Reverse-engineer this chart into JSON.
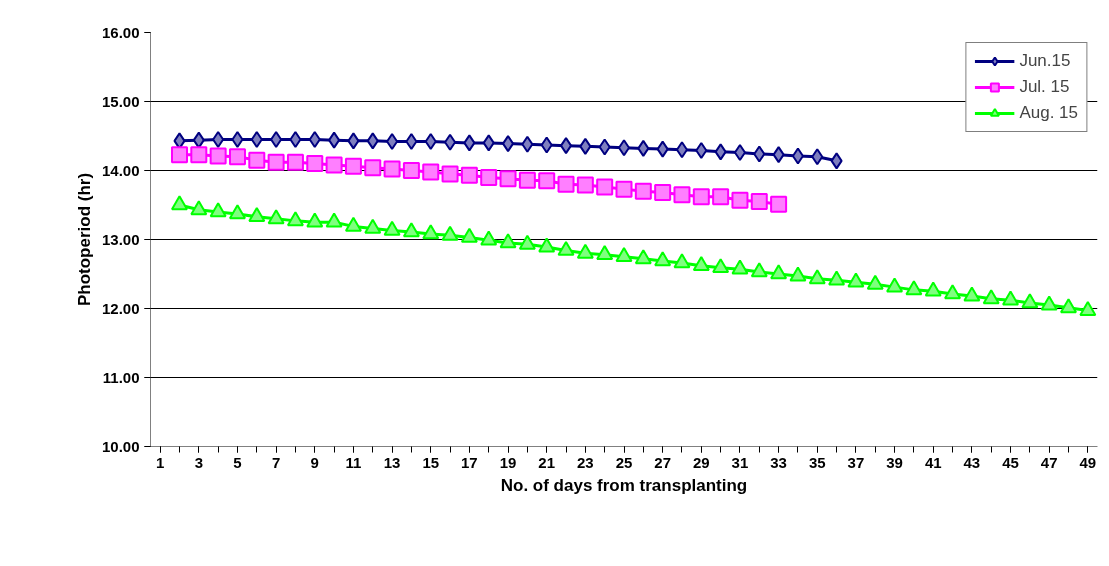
{
  "chart_data": {
    "type": "line",
    "xlabel": "No. of days from transplanting",
    "ylabel": "Photoperiod (hr)",
    "series": [
      {
        "name": "Jun.15",
        "color": "#000080",
        "marker": "diamond",
        "x": [
          2,
          3,
          4,
          5,
          6,
          7,
          8,
          9,
          10,
          11,
          12,
          13,
          14,
          15,
          16,
          17,
          18,
          19,
          20,
          21,
          22,
          23,
          24,
          25,
          26,
          27,
          28,
          29,
          30,
          31,
          32,
          33,
          34,
          35,
          36
        ],
        "values": [
          14.43,
          14.44,
          14.45,
          14.45,
          14.45,
          14.45,
          14.45,
          14.45,
          14.44,
          14.43,
          14.43,
          14.42,
          14.42,
          14.42,
          14.41,
          14.4,
          14.4,
          14.39,
          14.38,
          14.37,
          14.36,
          14.35,
          14.34,
          14.33,
          14.32,
          14.31,
          14.3,
          14.29,
          14.27,
          14.26,
          14.24,
          14.23,
          14.21,
          14.2,
          14.14
        ]
      },
      {
        "name": "Jul. 15",
        "color": "#ff00ff",
        "marker": "square",
        "x": [
          2,
          3,
          4,
          5,
          6,
          7,
          8,
          9,
          10,
          11,
          12,
          13,
          14,
          15,
          16,
          17,
          18,
          19,
          20,
          21,
          22,
          23,
          24,
          25,
          26,
          27,
          28,
          29,
          30,
          31,
          32,
          33
        ],
        "values": [
          14.23,
          14.23,
          14.21,
          14.2,
          14.15,
          14.12,
          14.12,
          14.1,
          14.08,
          14.06,
          14.04,
          14.02,
          14.0,
          13.98,
          13.95,
          13.93,
          13.9,
          13.88,
          13.86,
          13.85,
          13.8,
          13.79,
          13.76,
          13.73,
          13.7,
          13.68,
          13.65,
          13.62,
          13.62,
          13.57,
          13.55,
          13.51
        ]
      },
      {
        "name": "Aug. 15",
        "color": "#00ff00",
        "marker": "triangle",
        "x": [
          2,
          3,
          4,
          5,
          6,
          7,
          8,
          9,
          10,
          11,
          12,
          13,
          14,
          15,
          16,
          17,
          18,
          19,
          20,
          21,
          22,
          23,
          24,
          25,
          26,
          27,
          28,
          29,
          30,
          31,
          32,
          33,
          34,
          35,
          36,
          37,
          38,
          39,
          40,
          41,
          42,
          43,
          44,
          45,
          46,
          47,
          48,
          49
        ],
        "values": [
          13.5,
          13.43,
          13.4,
          13.37,
          13.33,
          13.3,
          13.27,
          13.25,
          13.25,
          13.19,
          13.16,
          13.13,
          13.11,
          13.08,
          13.06,
          13.03,
          12.99,
          12.95,
          12.93,
          12.89,
          12.84,
          12.8,
          12.78,
          12.75,
          12.72,
          12.69,
          12.66,
          12.62,
          12.59,
          12.57,
          12.53,
          12.5,
          12.47,
          12.43,
          12.41,
          12.38,
          12.35,
          12.31,
          12.27,
          12.25,
          12.21,
          12.18,
          12.14,
          12.12,
          12.08,
          12.05,
          12.01,
          11.97
        ]
      }
    ],
    "xlim": [
      0.5,
      49.5
    ],
    "xticks": [
      1,
      {
        "value": 2,
        "label": null
      },
      3,
      {
        "value": 4,
        "label": null
      },
      5,
      {
        "value": 6,
        "label": null
      },
      7,
      {
        "value": 8,
        "label": null
      },
      9,
      {
        "value": 10,
        "label": null
      },
      11,
      {
        "value": 12,
        "label": null
      },
      13,
      {
        "value": 14,
        "label": null
      },
      15,
      {
        "value": 16,
        "label": null
      },
      17,
      {
        "value": 18,
        "label": null
      },
      19,
      {
        "value": 20,
        "label": null
      },
      21,
      {
        "value": 22,
        "label": null
      },
      23,
      {
        "value": 24,
        "label": null
      },
      25,
      {
        "value": 26,
        "label": null
      },
      27,
      {
        "value": 28,
        "label": null
      },
      29,
      {
        "value": 30,
        "label": null
      },
      31,
      {
        "value": 32,
        "label": null
      },
      33,
      {
        "value": 34,
        "label": null
      },
      35,
      {
        "value": 36,
        "label": null
      },
      37,
      {
        "value": 38,
        "label": null
      },
      39,
      {
        "value": 40,
        "label": null
      },
      41,
      {
        "value": 42,
        "label": null
      },
      43,
      {
        "value": 44,
        "label": null
      },
      45,
      {
        "value": 46,
        "label": null
      },
      47,
      {
        "value": 48,
        "label": null
      },
      49
    ],
    "ylim": [
      10,
      16
    ],
    "yticks": [
      {
        "value": 10,
        "label": "10.00"
      },
      {
        "value": 11,
        "label": "11.00"
      },
      {
        "value": 12,
        "label": "12.00"
      },
      {
        "value": 13,
        "label": "13.00"
      },
      {
        "value": 14,
        "label": "14.00"
      },
      {
        "value": 15,
        "label": "15.00"
      },
      {
        "value": 16,
        "label": "16.00"
      }
    ],
    "grid": "y",
    "legend": "top right"
  }
}
